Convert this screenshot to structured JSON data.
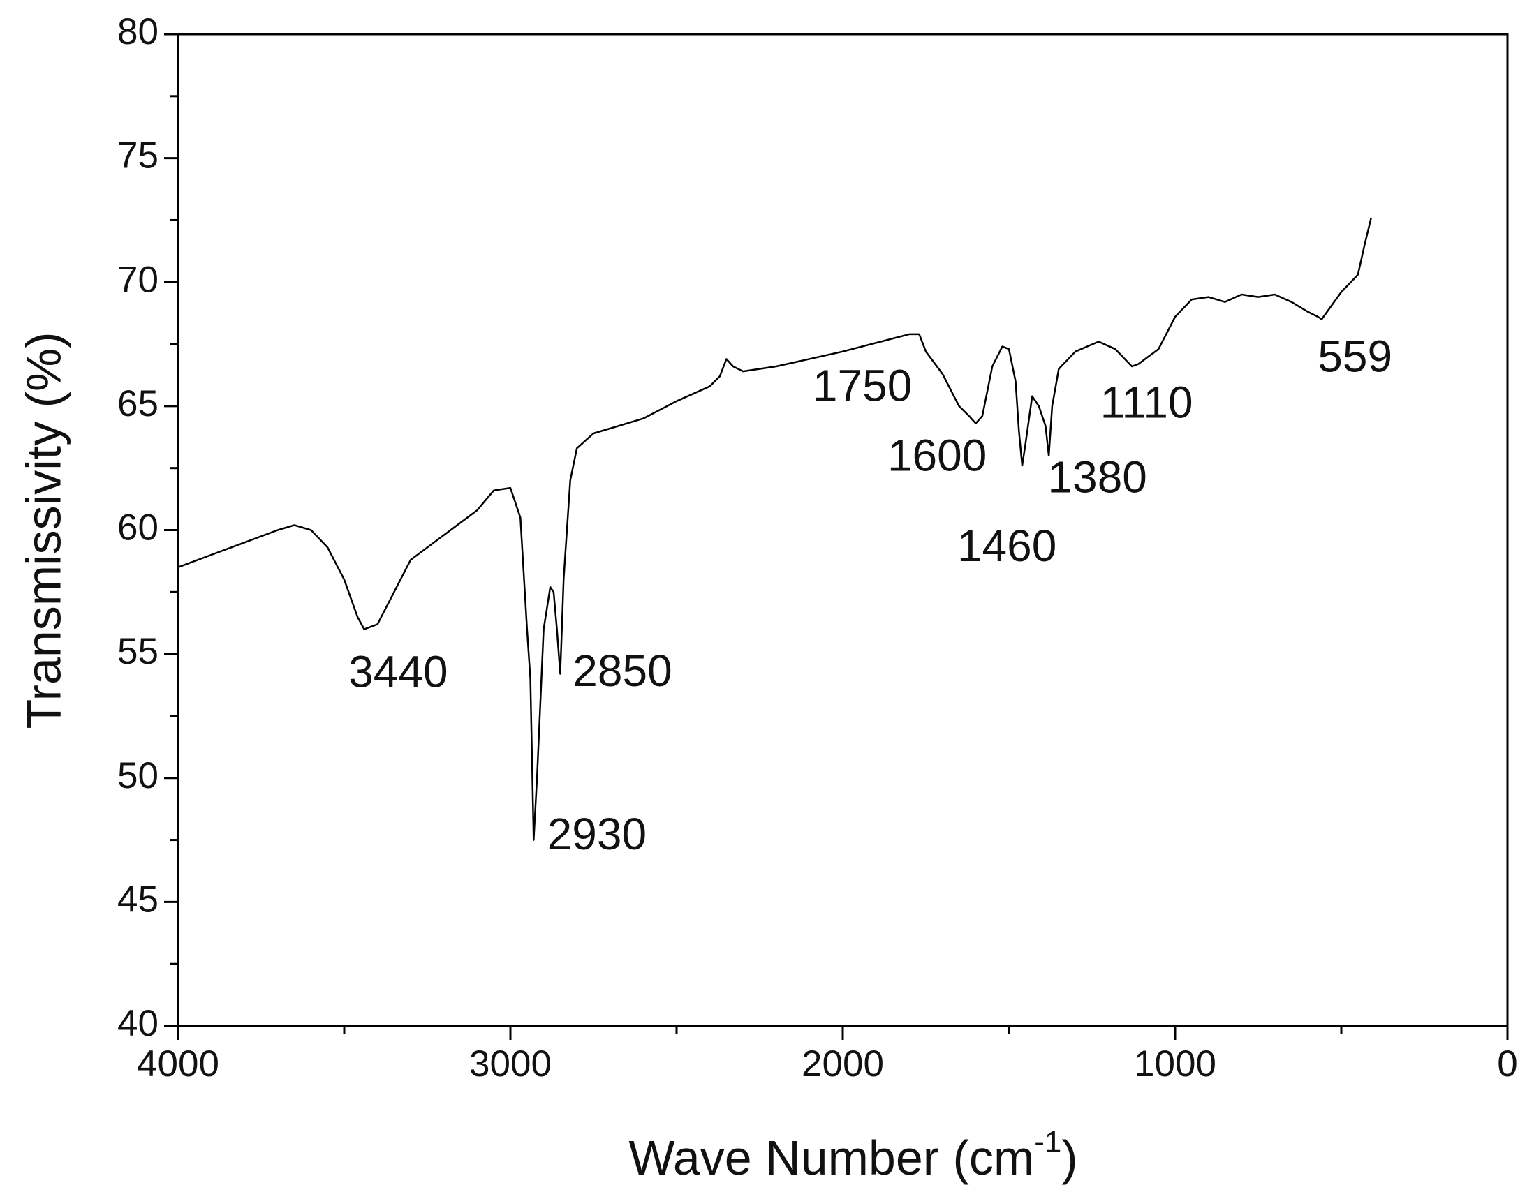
{
  "chart_data": {
    "type": "line",
    "x_label": [
      "Wave Number (cm",
      "-1",
      ")"
    ],
    "y_label": "Transmissivity (%)",
    "color": "#000000",
    "xlim": [
      4000,
      0
    ],
    "ylim": [
      40,
      80
    ],
    "xticks": [
      4000,
      3000,
      2000,
      1000,
      0
    ],
    "xticks_minor": [
      3500,
      2500,
      1500,
      500
    ],
    "yticks": [
      40,
      45,
      50,
      55,
      60,
      65,
      70,
      75,
      80
    ],
    "yticks_minor": [
      42.5,
      47.5,
      52.5,
      57.5,
      62.5,
      67.5,
      72.5,
      77.5
    ],
    "x": [
      4000,
      3900,
      3800,
      3700,
      3650,
      3600,
      3550,
      3500,
      3460,
      3440,
      3400,
      3350,
      3300,
      3250,
      3200,
      3100,
      3050,
      3000,
      2970,
      2950,
      2940,
      2930,
      2920,
      2900,
      2880,
      2870,
      2860,
      2850,
      2840,
      2820,
      2800,
      2750,
      2600,
      2500,
      2400,
      2370,
      2350,
      2330,
      2300,
      2200,
      2000,
      1800,
      1770,
      1750,
      1700,
      1650,
      1620,
      1600,
      1580,
      1550,
      1520,
      1500,
      1480,
      1470,
      1460,
      1450,
      1430,
      1410,
      1390,
      1380,
      1370,
      1350,
      1300,
      1230,
      1180,
      1130,
      1110,
      1080,
      1050,
      1000,
      950,
      900,
      850,
      800,
      750,
      700,
      650,
      600,
      570,
      559,
      500,
      450,
      430,
      410
    ],
    "values": [
      58.5,
      59.0,
      59.5,
      60.0,
      60.2,
      60.0,
      59.3,
      58.0,
      56.5,
      56.0,
      56.2,
      57.5,
      58.8,
      59.3,
      59.8,
      60.8,
      61.6,
      61.7,
      60.5,
      56,
      54,
      47.5,
      50,
      56,
      57.7,
      57.5,
      56,
      54.2,
      58,
      62,
      63.3,
      63.9,
      64.5,
      65.2,
      65.8,
      66.2,
      66.9,
      66.6,
      66.4,
      66.6,
      67.2,
      67.9,
      67.9,
      67.2,
      66.3,
      65.0,
      64.6,
      64.3,
      64.6,
      66.6,
      67.4,
      67.3,
      66.0,
      64,
      62.6,
      63.5,
      65.4,
      65.0,
      64.2,
      63.0,
      65.0,
      66.5,
      67.2,
      67.6,
      67.3,
      66.6,
      66.7,
      67.0,
      67.3,
      68.6,
      69.3,
      69.4,
      69.2,
      69.5,
      69.4,
      69.5,
      69.2,
      68.8,
      68.6,
      68.5,
      69.6,
      70.3,
      71.5,
      72.6
    ],
    "annotations": [
      "3440",
      "2930",
      "2850",
      "1750",
      "1600",
      "1460",
      "1380",
      "1110",
      "559"
    ]
  }
}
